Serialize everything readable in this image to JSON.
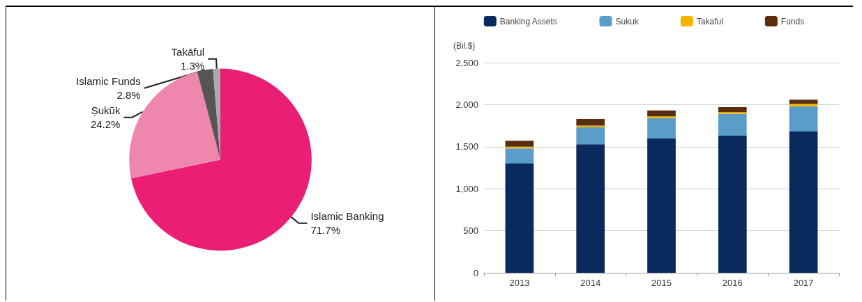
{
  "chart_data": [
    {
      "type": "pie",
      "categories": [
        "Islamic Banking",
        "Ṣukūk",
        "Islamic Funds",
        "Takāful"
      ],
      "values": [
        71.7,
        24.2,
        2.8,
        1.3
      ],
      "colors": [
        "#e91e74",
        "#ef86ae",
        "#555555",
        "#aaaaaa"
      ],
      "value_labels": [
        "71.7%",
        "24.2%",
        "2.8%",
        "1.3%"
      ],
      "legend": false
    },
    {
      "type": "bar",
      "stacked": true,
      "ylabel": "(Bil.$)",
      "categories": [
        "2013",
        "2014",
        "2015",
        "2016",
        "2017"
      ],
      "series": [
        {
          "name": "Banking Assets",
          "color": "#0a2a5e",
          "values": [
            1300,
            1530,
            1600,
            1630,
            1680
          ]
        },
        {
          "name": "Sukuk",
          "color": "#5a9dc8",
          "values": [
            180,
            200,
            240,
            260,
            300
          ]
        },
        {
          "name": "Takaful",
          "color": "#f5b400",
          "values": [
            20,
            20,
            20,
            20,
            30
          ]
        },
        {
          "name": "Funds",
          "color": "#5a2e0c",
          "values": [
            70,
            80,
            70,
            60,
            50
          ]
        }
      ],
      "ylim": [
        0,
        2500
      ],
      "yticks": [
        0,
        500,
        {
          "value": 1000,
          "label": "1,000"
        },
        {
          "value": 1500,
          "label": "1,500"
        },
        {
          "value": 2000,
          "label": "2,000"
        },
        {
          "value": 2500,
          "label": "2,500"
        }
      ],
      "grid": "y",
      "legend": "top"
    }
  ]
}
